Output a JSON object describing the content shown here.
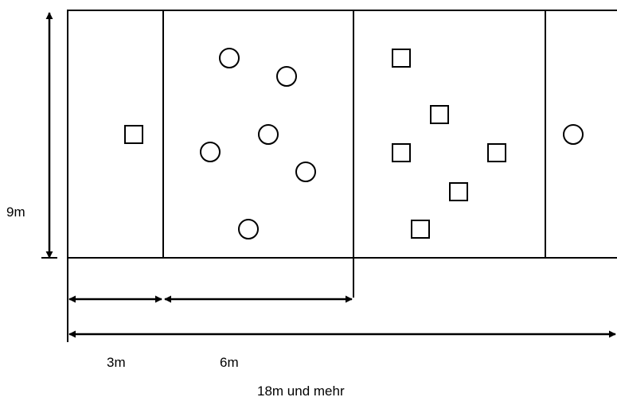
{
  "dimensions": {
    "height": "9m",
    "width_zone_1": "3m",
    "width_zone_2": "6m",
    "total_width": "18m und mehr"
  },
  "field": {
    "zone_1_markers": {
      "circles": 0,
      "squares": 1
    },
    "zone_2_markers": {
      "circles": 6,
      "squares": 0
    },
    "zone_3_markers": {
      "circles": 0,
      "squares": 6
    },
    "zone_4_markers": {
      "circles": 1,
      "squares": 0
    }
  },
  "colors": {
    "stroke": "#000000",
    "background": "#ffffff"
  }
}
